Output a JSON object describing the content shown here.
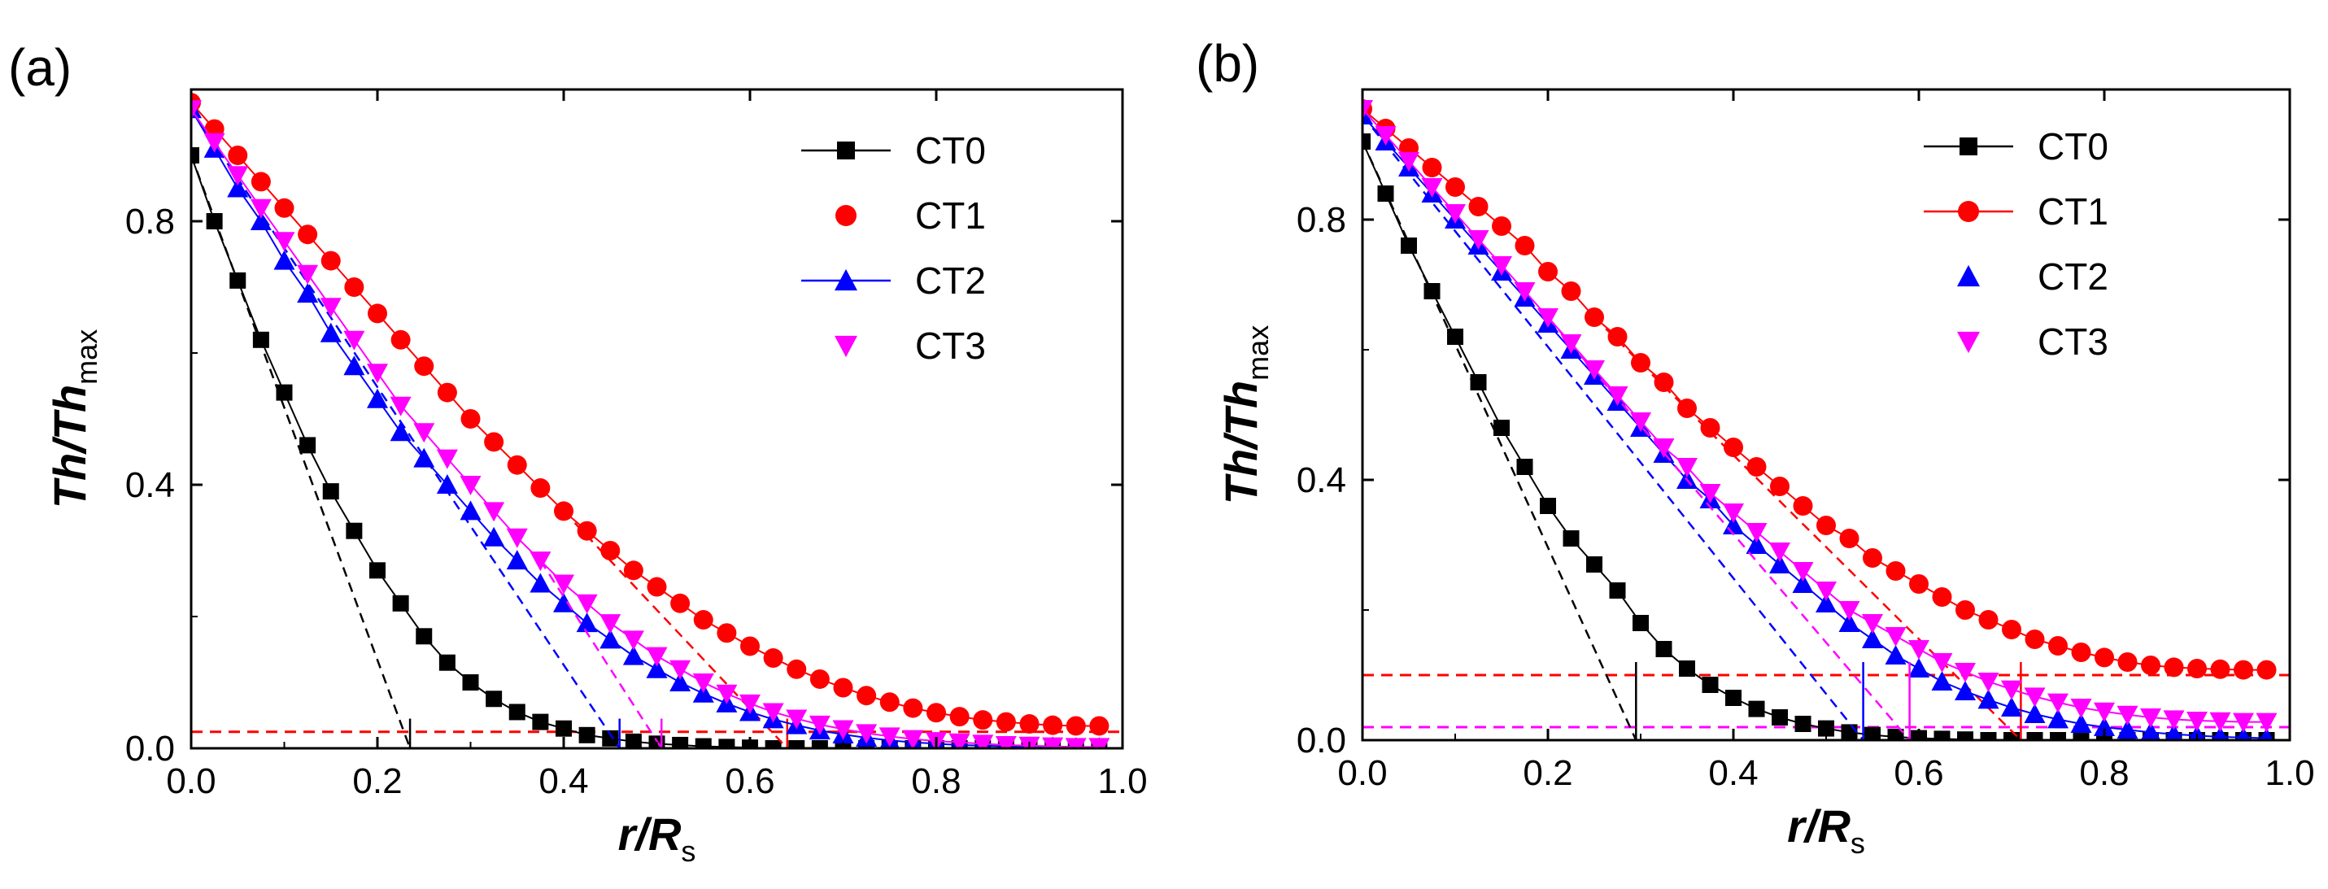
{
  "chart_data": [
    {
      "type": "line",
      "panel_label": "(a)",
      "xlabel": {
        "main": "r/R",
        "sub": "s"
      },
      "ylabel": {
        "main": "Th/Th",
        "sub": "max"
      },
      "xlim": [
        0,
        1.0
      ],
      "ylim": [
        0,
        1.0
      ],
      "xticks": [
        "0.0",
        "0.2",
        "0.4",
        "0.6",
        "0.8",
        "1.0"
      ],
      "yticks": [
        "0.0",
        "0.4",
        "0.8"
      ],
      "legend_position": "top-right",
      "baseline_level": 0.025,
      "series": [
        {
          "name": "CT0",
          "color": "#000000",
          "marker": "square",
          "legend_line": true,
          "x": [
            0.0,
            0.025,
            0.05,
            0.075,
            0.1,
            0.125,
            0.15,
            0.175,
            0.2,
            0.225,
            0.25,
            0.275,
            0.3,
            0.325,
            0.35,
            0.375,
            0.4,
            0.425,
            0.45,
            0.475,
            0.5,
            0.525,
            0.55,
            0.575,
            0.6,
            0.625,
            0.65,
            0.675,
            0.7,
            0.725,
            0.75,
            0.775,
            0.8,
            0.825,
            0.85,
            0.875,
            0.9,
            0.925,
            0.95,
            0.975
          ],
          "y": [
            0.9,
            0.8,
            0.71,
            0.62,
            0.54,
            0.46,
            0.39,
            0.33,
            0.27,
            0.22,
            0.17,
            0.13,
            0.1,
            0.075,
            0.055,
            0.04,
            0.03,
            0.02,
            0.015,
            0.01,
            0.007,
            0.005,
            0.003,
            0.002,
            0.001,
            0.0,
            0.0,
            0.0,
            0.0,
            0.0,
            0.0,
            0.0,
            0.0,
            0.0,
            0.0,
            0.0,
            0.0,
            0.0,
            0.0,
            0.0
          ],
          "tangent": {
            "x0": 0.0,
            "y0": 0.9,
            "x_intercept": 0.235
          }
        },
        {
          "name": "CT1",
          "color": "#ff0000",
          "marker": "circle",
          "legend_line": false,
          "x": [
            0.0,
            0.025,
            0.05,
            0.075,
            0.1,
            0.125,
            0.15,
            0.175,
            0.2,
            0.225,
            0.25,
            0.275,
            0.3,
            0.325,
            0.35,
            0.375,
            0.4,
            0.425,
            0.45,
            0.475,
            0.5,
            0.525,
            0.55,
            0.575,
            0.6,
            0.625,
            0.65,
            0.675,
            0.7,
            0.725,
            0.75,
            0.775,
            0.8,
            0.825,
            0.85,
            0.875,
            0.9,
            0.925,
            0.95,
            0.975
          ],
          "y": [
            0.98,
            0.94,
            0.9,
            0.86,
            0.82,
            0.78,
            0.74,
            0.7,
            0.66,
            0.62,
            0.58,
            0.54,
            0.5,
            0.465,
            0.43,
            0.395,
            0.36,
            0.33,
            0.3,
            0.27,
            0.245,
            0.22,
            0.195,
            0.175,
            0.155,
            0.137,
            0.12,
            0.105,
            0.092,
            0.08,
            0.07,
            0.061,
            0.054,
            0.048,
            0.043,
            0.04,
            0.037,
            0.035,
            0.034,
            0.034
          ],
          "tangent": {
            "x0": 0.4,
            "y0": 0.36,
            "x_intercept": 0.64
          }
        },
        {
          "name": "CT2",
          "color": "#0000ff",
          "marker": "triangle-up",
          "legend_line": true,
          "x": [
            0.0,
            0.025,
            0.05,
            0.075,
            0.1,
            0.125,
            0.15,
            0.175,
            0.2,
            0.225,
            0.25,
            0.275,
            0.3,
            0.325,
            0.35,
            0.375,
            0.4,
            0.425,
            0.45,
            0.475,
            0.5,
            0.525,
            0.55,
            0.575,
            0.6,
            0.625,
            0.65,
            0.675,
            0.7,
            0.725,
            0.75,
            0.775,
            0.8,
            0.825,
            0.85,
            0.875,
            0.9,
            0.925,
            0.95,
            0.975
          ],
          "y": [
            0.97,
            0.91,
            0.85,
            0.8,
            0.74,
            0.69,
            0.63,
            0.58,
            0.53,
            0.48,
            0.44,
            0.4,
            0.36,
            0.32,
            0.285,
            0.25,
            0.22,
            0.19,
            0.165,
            0.14,
            0.12,
            0.1,
            0.083,
            0.068,
            0.055,
            0.044,
            0.035,
            0.027,
            0.021,
            0.016,
            0.012,
            0.009,
            0.007,
            0.005,
            0.004,
            0.003,
            0.002,
            0.002,
            0.001,
            0.001
          ],
          "tangent": {
            "x0": 0.0,
            "y0": 0.97,
            "x_intercept": 0.46
          }
        },
        {
          "name": "CT3",
          "color": "#ff00ff",
          "marker": "triangle-down",
          "legend_line": false,
          "x": [
            0.0,
            0.025,
            0.05,
            0.075,
            0.1,
            0.125,
            0.15,
            0.175,
            0.2,
            0.225,
            0.25,
            0.275,
            0.3,
            0.325,
            0.35,
            0.375,
            0.4,
            0.425,
            0.45,
            0.475,
            0.5,
            0.525,
            0.55,
            0.575,
            0.6,
            0.625,
            0.65,
            0.675,
            0.7,
            0.725,
            0.75,
            0.775,
            0.8,
            0.825,
            0.85,
            0.875,
            0.9,
            0.925,
            0.95,
            0.975
          ],
          "y": [
            0.97,
            0.92,
            0.87,
            0.82,
            0.77,
            0.72,
            0.67,
            0.62,
            0.57,
            0.52,
            0.48,
            0.44,
            0.4,
            0.36,
            0.32,
            0.285,
            0.25,
            0.22,
            0.19,
            0.165,
            0.14,
            0.12,
            0.1,
            0.083,
            0.068,
            0.055,
            0.045,
            0.036,
            0.029,
            0.023,
            0.018,
            0.014,
            0.011,
            0.009,
            0.007,
            0.005,
            0.004,
            0.003,
            0.002,
            0.002
          ],
          "tangent": {
            "x0": 0.375,
            "y0": 0.285,
            "x_intercept": 0.505
          }
        }
      ]
    },
    {
      "type": "line",
      "panel_label": "(b)",
      "xlabel": {
        "main": "r/R",
        "sub": "s"
      },
      "ylabel": {
        "main": "Th/Th",
        "sub": "max"
      },
      "xlim": [
        0,
        1.0
      ],
      "ylim": [
        0,
        1.0
      ],
      "xticks": [
        "0.0",
        "0.2",
        "0.4",
        "0.6",
        "0.8",
        "1.0"
      ],
      "yticks": [
        "0.0",
        "0.4",
        "0.8"
      ],
      "legend_position": "top-right",
      "reference_lines": [
        {
          "y": 0.1,
          "color": "#ff0000"
        },
        {
          "y": 0.02,
          "color": "#ff00ff"
        }
      ],
      "series": [
        {
          "name": "CT0",
          "color": "#000000",
          "marker": "square",
          "legend_line": true,
          "x": [
            0.0,
            0.025,
            0.05,
            0.075,
            0.1,
            0.125,
            0.15,
            0.175,
            0.2,
            0.225,
            0.25,
            0.275,
            0.3,
            0.325,
            0.35,
            0.375,
            0.4,
            0.425,
            0.45,
            0.475,
            0.5,
            0.525,
            0.55,
            0.575,
            0.6,
            0.625,
            0.65,
            0.675,
            0.7,
            0.725,
            0.75,
            0.775,
            0.8,
            0.825,
            0.85,
            0.875,
            0.9,
            0.925,
            0.95,
            0.975
          ],
          "y": [
            0.92,
            0.84,
            0.76,
            0.69,
            0.62,
            0.55,
            0.48,
            0.42,
            0.36,
            0.31,
            0.27,
            0.23,
            0.18,
            0.14,
            0.11,
            0.085,
            0.065,
            0.048,
            0.035,
            0.025,
            0.018,
            0.012,
            0.008,
            0.005,
            0.003,
            0.002,
            0.001,
            0.0,
            0.0,
            0.0,
            0.0,
            0.0,
            0.0,
            0.0,
            0.0,
            0.0,
            0.0,
            0.0,
            0.0,
            0.0
          ],
          "tangent": {
            "x0": 0.0,
            "y0": 0.92,
            "x_intercept": 0.295
          }
        },
        {
          "name": "CT1",
          "color": "#ff0000",
          "marker": "circle",
          "legend_line": true,
          "x": [
            0.0,
            0.025,
            0.05,
            0.075,
            0.1,
            0.125,
            0.15,
            0.175,
            0.2,
            0.225,
            0.25,
            0.275,
            0.3,
            0.325,
            0.35,
            0.375,
            0.4,
            0.425,
            0.45,
            0.475,
            0.5,
            0.525,
            0.55,
            0.575,
            0.6,
            0.625,
            0.65,
            0.675,
            0.7,
            0.725,
            0.75,
            0.775,
            0.8,
            0.825,
            0.85,
            0.875,
            0.9,
            0.925,
            0.95,
            0.975
          ],
          "y": [
            0.97,
            0.94,
            0.91,
            0.88,
            0.85,
            0.82,
            0.79,
            0.76,
            0.72,
            0.69,
            0.65,
            0.62,
            0.58,
            0.55,
            0.51,
            0.48,
            0.45,
            0.42,
            0.39,
            0.36,
            0.33,
            0.31,
            0.28,
            0.26,
            0.24,
            0.22,
            0.2,
            0.185,
            0.17,
            0.155,
            0.145,
            0.135,
            0.127,
            0.12,
            0.115,
            0.112,
            0.11,
            0.109,
            0.108,
            0.108
          ],
          "tangent": {
            "x0": 0.25,
            "y0": 0.65,
            "x_intercept": 0.71
          }
        },
        {
          "name": "CT2",
          "color": "#0000ff",
          "marker": "triangle-up",
          "legend_line": false,
          "x": [
            0.0,
            0.025,
            0.05,
            0.075,
            0.1,
            0.125,
            0.15,
            0.175,
            0.2,
            0.225,
            0.25,
            0.275,
            0.3,
            0.325,
            0.35,
            0.375,
            0.4,
            0.425,
            0.45,
            0.475,
            0.5,
            0.525,
            0.55,
            0.575,
            0.6,
            0.625,
            0.65,
            0.675,
            0.7,
            0.725,
            0.75,
            0.775,
            0.8,
            0.825,
            0.85,
            0.875,
            0.9,
            0.925,
            0.95,
            0.975
          ],
          "y": [
            0.96,
            0.92,
            0.88,
            0.84,
            0.8,
            0.76,
            0.72,
            0.68,
            0.64,
            0.6,
            0.56,
            0.52,
            0.48,
            0.44,
            0.4,
            0.37,
            0.33,
            0.3,
            0.27,
            0.24,
            0.21,
            0.18,
            0.155,
            0.13,
            0.11,
            0.09,
            0.075,
            0.062,
            0.05,
            0.04,
            0.032,
            0.025,
            0.02,
            0.016,
            0.012,
            0.009,
            0.007,
            0.005,
            0.004,
            0.003
          ],
          "tangent": {
            "x0": 0.0,
            "y0": 0.96,
            "x_intercept": 0.54
          }
        },
        {
          "name": "CT3",
          "color": "#ff00ff",
          "marker": "triangle-down",
          "legend_line": false,
          "x": [
            0.0,
            0.025,
            0.05,
            0.075,
            0.1,
            0.125,
            0.15,
            0.175,
            0.2,
            0.225,
            0.25,
            0.275,
            0.3,
            0.325,
            0.35,
            0.375,
            0.4,
            0.425,
            0.45,
            0.475,
            0.5,
            0.525,
            0.55,
            0.575,
            0.6,
            0.625,
            0.65,
            0.675,
            0.7,
            0.725,
            0.75,
            0.775,
            0.8,
            0.825,
            0.85,
            0.875,
            0.9,
            0.925,
            0.95,
            0.975
          ],
          "y": [
            0.97,
            0.93,
            0.89,
            0.85,
            0.81,
            0.77,
            0.73,
            0.69,
            0.65,
            0.61,
            0.57,
            0.53,
            0.49,
            0.45,
            0.42,
            0.38,
            0.35,
            0.32,
            0.29,
            0.26,
            0.23,
            0.2,
            0.18,
            0.16,
            0.14,
            0.12,
            0.105,
            0.09,
            0.078,
            0.067,
            0.058,
            0.05,
            0.044,
            0.039,
            0.035,
            0.032,
            0.03,
            0.029,
            0.028,
            0.028
          ],
          "tangent": {
            "x0": 0.2,
            "y0": 0.65,
            "x_intercept": 0.59
          }
        }
      ]
    }
  ]
}
